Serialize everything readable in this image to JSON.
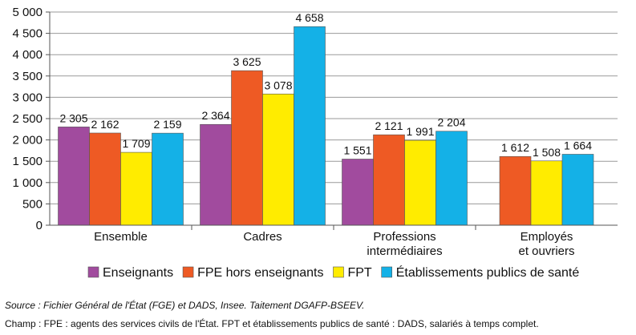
{
  "chart_data": {
    "type": "bar",
    "categories": [
      [
        "Ensemble"
      ],
      [
        "Cadres"
      ],
      [
        "Professions",
        "intermédiaires"
      ],
      [
        "Employés",
        "et ouvriers"
      ]
    ],
    "series": [
      {
        "name": "Enseignants",
        "color": "#A14B9E",
        "values": [
          2305,
          2364,
          1551,
          null
        ]
      },
      {
        "name": "FPE hors enseignants",
        "color": "#EE5A24",
        "values": [
          2162,
          3625,
          2121,
          1612
        ]
      },
      {
        "name": "FPT",
        "color": "#FFEC00",
        "values": [
          1709,
          3078,
          1991,
          1508
        ]
      },
      {
        "name": "Établissements publics de santé",
        "color": "#14B1E7",
        "values": [
          2159,
          4658,
          2204,
          1664
        ]
      }
    ],
    "data_labels": [
      [
        "2 305",
        "2 364",
        "1 551",
        ""
      ],
      [
        "2 162",
        "3 625",
        "2 121",
        "1 612"
      ],
      [
        "1 709",
        "3 078",
        "1 991",
        "1 508"
      ],
      [
        "2 159",
        "4 658",
        "2 204",
        "1 664"
      ]
    ],
    "yticks": [
      0,
      500,
      1000,
      1500,
      2000,
      2500,
      3000,
      3500,
      4000,
      4500,
      5000
    ],
    "ytick_labels": [
      "0",
      "500",
      "1 000",
      "1 500",
      "2 000",
      "2 500",
      "3 000",
      "3 500",
      "4 000",
      "4 500",
      "5 000"
    ],
    "ylim": [
      0,
      5000
    ],
    "grid": "horizontal",
    "legend_position": "bottom"
  },
  "notes": {
    "source": "Source : Fichier Général de l'État (FGE) et DADS, Insee. Taitement DGAFP-BSEEV.",
    "champ": "Champ  :  FPE : agents des services civils de l'État. FPT et établissements publics de santé : DADS, salariés à temps complet."
  }
}
